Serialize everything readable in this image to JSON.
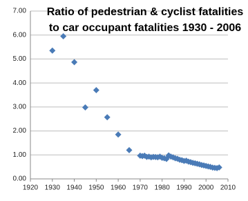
{
  "chart_data": {
    "type": "scatter",
    "title": [
      "Ratio of pedestrian & cyclist fatalities",
      "to car occupant fatalities   1930 - 2006"
    ],
    "x": [
      1930,
      1935,
      1940,
      1945,
      1950,
      1955,
      1960,
      1965,
      1970,
      1971,
      1972,
      1973,
      1974,
      1975,
      1976,
      1977,
      1978,
      1979,
      1980,
      1981,
      1982,
      1983,
      1984,
      1985,
      1986,
      1987,
      1988,
      1989,
      1990,
      1991,
      1992,
      1993,
      1994,
      1995,
      1996,
      1997,
      1998,
      1999,
      2000,
      2001,
      2002,
      2003,
      2004,
      2005,
      2006
    ],
    "values": [
      5.35,
      5.95,
      4.87,
      2.98,
      3.7,
      2.57,
      1.85,
      1.2,
      0.97,
      0.95,
      0.97,
      0.92,
      0.93,
      0.9,
      0.92,
      0.91,
      0.9,
      0.93,
      0.88,
      0.86,
      0.83,
      0.98,
      0.93,
      0.9,
      0.86,
      0.84,
      0.8,
      0.78,
      0.75,
      0.76,
      0.72,
      0.7,
      0.67,
      0.65,
      0.63,
      0.61,
      0.58,
      0.56,
      0.54,
      0.52,
      0.5,
      0.47,
      0.46,
      0.45,
      0.48
    ],
    "color": "#4a7bb7",
    "xlim": [
      1920,
      2010
    ],
    "xticks": [
      1920,
      1930,
      1940,
      1950,
      1960,
      1970,
      1980,
      1990,
      2000,
      2010
    ],
    "ylim": [
      0,
      7
    ],
    "yticks": [
      {
        "value": 0,
        "label": "0.00"
      },
      {
        "value": 1,
        "label": "1.00"
      },
      {
        "value": 2,
        "label": "2.00"
      },
      {
        "value": 3,
        "label": "3.00"
      },
      {
        "value": 4,
        "label": "4.00"
      },
      {
        "value": 5,
        "label": "5.00"
      },
      {
        "value": 6,
        "label": "6.00"
      },
      {
        "value": 7,
        "label": "7.00"
      }
    ],
    "grid": true
  }
}
